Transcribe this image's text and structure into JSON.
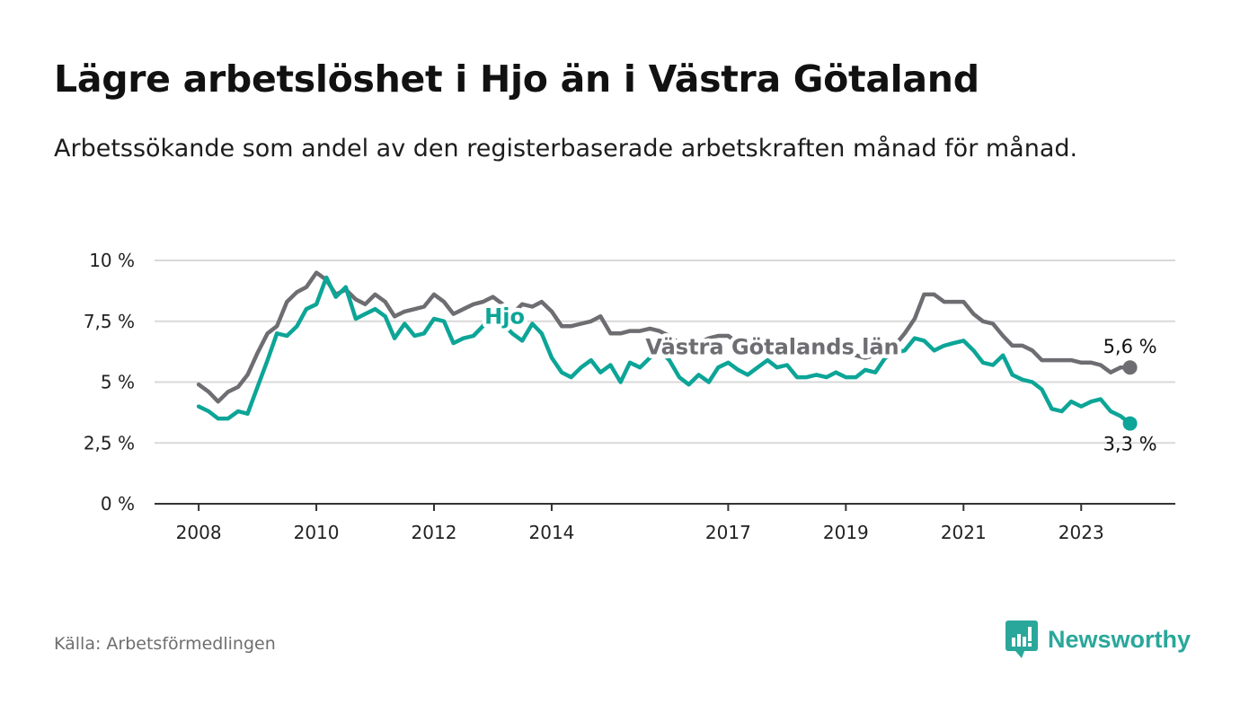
{
  "title": "Lägre arbetslöshet i Hjo än i Västra Götaland",
  "subtitle": "Arbetssökande som andel av den registerbaserade arbetskraften månad för månad.",
  "source": "Källa: Arbetsförmedlingen",
  "brand": "Newsworthy",
  "colors": {
    "hjo": "#0ca597",
    "vg": "#6d6d72",
    "grid": "#d9d9d9",
    "axis": "#333333",
    "brand": "#2aa79b"
  },
  "chart_data": {
    "type": "line",
    "title": "Lägre arbetslöshet i Hjo än i Västra Götaland",
    "ylabel": "",
    "xlabel": "",
    "ylim": [
      0,
      10
    ],
    "xlim": [
      2007.25,
      2024.6
    ],
    "yticks": [
      0,
      2.5,
      5,
      7.5,
      10
    ],
    "ytick_labels": [
      "0 %",
      "2,5 %",
      "5 %",
      "7,5 %",
      "10 %"
    ],
    "xticks": [
      2008,
      2010,
      2012,
      2014,
      2017,
      2019,
      2021,
      2023
    ],
    "xtick_labels": [
      "2008",
      "2010",
      "2012",
      "2014",
      "2017",
      "2019",
      "2021",
      "2023"
    ],
    "grid": true,
    "series": [
      {
        "name": "Hjo",
        "label": "Hjo",
        "color": "#0ca597",
        "end_label": "3,3 %",
        "label_at": [
          2013.2,
          7.4
        ],
        "x": [
          2008.0,
          2008.17,
          2008.33,
          2008.5,
          2008.67,
          2008.83,
          2009.0,
          2009.17,
          2009.33,
          2009.5,
          2009.67,
          2009.83,
          2010.0,
          2010.17,
          2010.33,
          2010.5,
          2010.67,
          2010.83,
          2011.0,
          2011.17,
          2011.33,
          2011.5,
          2011.67,
          2011.83,
          2012.0,
          2012.17,
          2012.33,
          2012.5,
          2012.67,
          2012.83,
          2013.0,
          2013.17,
          2013.33,
          2013.5,
          2013.67,
          2013.83,
          2014.0,
          2014.17,
          2014.33,
          2014.5,
          2014.67,
          2014.83,
          2015.0,
          2015.17,
          2015.33,
          2015.5,
          2015.67,
          2015.83,
          2016.0,
          2016.17,
          2016.33,
          2016.5,
          2016.67,
          2016.83,
          2017.0,
          2017.17,
          2017.33,
          2017.5,
          2017.67,
          2017.83,
          2018.0,
          2018.17,
          2018.33,
          2018.5,
          2018.67,
          2018.83,
          2019.0,
          2019.17,
          2019.33,
          2019.5,
          2019.67,
          2019.83,
          2020.0,
          2020.17,
          2020.33,
          2020.5,
          2020.67,
          2020.83,
          2021.0,
          2021.17,
          2021.33,
          2021.5,
          2021.67,
          2021.83,
          2022.0,
          2022.17,
          2022.33,
          2022.5,
          2022.67,
          2022.83,
          2023.0,
          2023.17,
          2023.33,
          2023.5,
          2023.67,
          2023.83
        ],
        "values": [
          4.0,
          3.8,
          3.5,
          3.5,
          3.8,
          3.7,
          4.8,
          5.9,
          7.0,
          6.9,
          7.3,
          8.0,
          8.2,
          9.3,
          8.5,
          8.9,
          7.6,
          7.8,
          8.0,
          7.7,
          6.8,
          7.4,
          6.9,
          7.0,
          7.6,
          7.5,
          6.6,
          6.8,
          6.9,
          7.3,
          7.9,
          7.4,
          7.0,
          6.7,
          7.4,
          7.0,
          6.0,
          5.4,
          5.2,
          5.6,
          5.9,
          5.4,
          5.7,
          5.0,
          5.8,
          5.6,
          6.0,
          6.3,
          5.9,
          5.2,
          4.9,
          5.3,
          5.0,
          5.6,
          5.8,
          5.5,
          5.3,
          5.6,
          5.9,
          5.6,
          5.7,
          5.2,
          5.2,
          5.3,
          5.2,
          5.4,
          5.2,
          5.2,
          5.5,
          5.4,
          6.0,
          6.2,
          6.3,
          6.8,
          6.7,
          6.3,
          6.5,
          6.6,
          6.7,
          6.3,
          5.8,
          5.7,
          6.1,
          5.3,
          5.1,
          5.0,
          4.7,
          3.9,
          3.8,
          4.2,
          4.0,
          4.2,
          4.3,
          3.8,
          3.6,
          3.3
        ]
      },
      {
        "name": "Västra Götalands län",
        "label": "Västra Götalands län",
        "color": "#6d6d72",
        "end_label": "5,6 %",
        "label_at": [
          2017.75,
          6.15
        ],
        "x": [
          2008.0,
          2008.17,
          2008.33,
          2008.5,
          2008.67,
          2008.83,
          2009.0,
          2009.17,
          2009.33,
          2009.5,
          2009.67,
          2009.83,
          2010.0,
          2010.17,
          2010.33,
          2010.5,
          2010.67,
          2010.83,
          2011.0,
          2011.17,
          2011.33,
          2011.5,
          2011.67,
          2011.83,
          2012.0,
          2012.17,
          2012.33,
          2012.5,
          2012.67,
          2012.83,
          2013.0,
          2013.17,
          2013.33,
          2013.5,
          2013.67,
          2013.83,
          2014.0,
          2014.17,
          2014.33,
          2014.5,
          2014.67,
          2014.83,
          2015.0,
          2015.17,
          2015.33,
          2015.5,
          2015.67,
          2015.83,
          2016.0,
          2016.17,
          2016.33,
          2016.5,
          2016.67,
          2016.83,
          2017.0,
          2017.17,
          2017.33,
          2017.5,
          2017.67,
          2017.83,
          2018.0,
          2018.17,
          2018.33,
          2018.5,
          2018.67,
          2018.83,
          2019.0,
          2019.17,
          2019.33,
          2019.5,
          2019.67,
          2019.83,
          2020.0,
          2020.17,
          2020.33,
          2020.5,
          2020.67,
          2020.83,
          2021.0,
          2021.17,
          2021.33,
          2021.5,
          2021.67,
          2021.83,
          2022.0,
          2022.17,
          2022.33,
          2022.5,
          2022.67,
          2022.83,
          2023.0,
          2023.17,
          2023.33,
          2023.5,
          2023.67,
          2023.83
        ],
        "values": [
          4.9,
          4.6,
          4.2,
          4.6,
          4.8,
          5.3,
          6.2,
          7.0,
          7.3,
          8.3,
          8.7,
          8.9,
          9.5,
          9.2,
          8.6,
          8.8,
          8.4,
          8.2,
          8.6,
          8.3,
          7.7,
          7.9,
          8.0,
          8.1,
          8.6,
          8.3,
          7.8,
          8.0,
          8.2,
          8.3,
          8.5,
          8.2,
          7.8,
          8.2,
          8.1,
          8.3,
          7.9,
          7.3,
          7.3,
          7.4,
          7.5,
          7.7,
          7.0,
          7.0,
          7.1,
          7.1,
          7.2,
          7.1,
          6.9,
          6.6,
          6.5,
          6.6,
          6.8,
          6.9,
          6.9,
          6.6,
          6.6,
          6.6,
          6.5,
          6.4,
          6.3,
          6.3,
          6.2,
          6.2,
          6.2,
          6.3,
          6.2,
          6.1,
          6.0,
          6.1,
          6.2,
          6.5,
          7.0,
          7.6,
          8.6,
          8.6,
          8.3,
          8.3,
          8.3,
          7.8,
          7.5,
          7.4,
          6.9,
          6.5,
          6.5,
          6.3,
          5.9,
          5.9,
          5.9,
          5.9,
          5.8,
          5.8,
          5.7,
          5.4,
          5.6,
          5.6
        ]
      }
    ]
  }
}
